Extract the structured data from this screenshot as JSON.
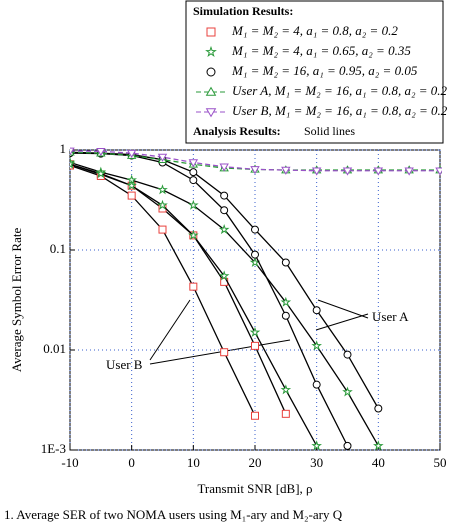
{
  "chart_data": {
    "type": "line",
    "xlabel": "Transmit SNR [dB], ρ",
    "ylabel": "Average Symbol Error Rate",
    "caption": "1.   Average SER of two NOMA users using M₁-ary and M₂-ary Q",
    "legend_title": "Simulation Results:",
    "legend_note_title": "Analysis Results:",
    "legend_note": "Solid lines",
    "annotations": [
      "User A",
      "User B"
    ],
    "log_y": true,
    "grid": true,
    "xlim": [
      -10,
      50
    ],
    "ylim": [
      0.001,
      1
    ],
    "xticks": [
      -10,
      0,
      10,
      20,
      30,
      40,
      50
    ],
    "yticks": [
      {
        "value": 0.001,
        "label": "1E-3"
      },
      0.01,
      0.1,
      1
    ],
    "x": [
      -10,
      -5,
      0,
      5,
      10,
      15,
      20,
      25,
      30,
      35,
      40,
      45,
      50
    ],
    "series": [
      {
        "name": "M₁ = M₂ = 4, a₁ = 0.8, a₂ = 0.2",
        "color": "#e8403c",
        "marker": "square",
        "dashed": false,
        "curves": [
          [
            0.72,
            0.57,
            0.44,
            0.26,
            0.14,
            0.048,
            0.011,
            0.0023,
            null,
            null,
            null,
            null,
            null
          ],
          [
            0.7,
            0.55,
            0.35,
            0.16,
            0.043,
            0.0095,
            0.0022,
            null,
            null,
            null,
            null,
            null,
            null
          ]
        ]
      },
      {
        "name": "M₁ = M₂ = 4, a₁ = 0.65, a₂ = 0.35",
        "color": "#2a9a3a",
        "marker": "star",
        "dashed": false,
        "curves": [
          [
            0.75,
            0.6,
            0.5,
            0.4,
            0.28,
            0.16,
            0.075,
            0.03,
            0.011,
            0.0038,
            0.0011,
            null,
            null
          ],
          [
            0.72,
            0.58,
            0.44,
            0.28,
            0.14,
            0.055,
            0.015,
            0.004,
            0.0011,
            null,
            null,
            null,
            null
          ]
        ]
      },
      {
        "name": "M₁ = M₂ = 16, a₁ = 0.95, a₂ = 0.05",
        "color": "#000000",
        "marker": "circle",
        "dashed": false,
        "curves": [
          [
            0.95,
            0.93,
            0.9,
            0.8,
            0.6,
            0.35,
            0.16,
            0.075,
            0.025,
            0.009,
            0.0026,
            null,
            null
          ],
          [
            0.93,
            0.92,
            0.88,
            0.75,
            0.5,
            0.25,
            0.09,
            0.022,
            0.0045,
            0.0011,
            null,
            null,
            null
          ]
        ]
      },
      {
        "name": "User A, M₁ = M₂ = 16, a₁ = 0.8, a₂ = 0.2",
        "color": "#2a9a3a",
        "marker": "triangle-up",
        "dashed": true,
        "curves": [
          [
            0.95,
            0.93,
            0.88,
            0.8,
            0.72,
            0.66,
            0.64,
            0.63,
            0.63,
            0.63,
            0.63,
            0.63,
            0.63
          ]
        ]
      },
      {
        "name": "User B, M₁ = M₂ = 16, a₁ = 0.8, a₂ = 0.2",
        "color": "#9a52c8",
        "marker": "triangle-down",
        "dashed": true,
        "curves": [
          [
            0.98,
            0.97,
            0.93,
            0.85,
            0.75,
            0.68,
            0.64,
            0.63,
            0.62,
            0.62,
            0.62,
            0.62,
            0.62
          ]
        ]
      }
    ]
  }
}
